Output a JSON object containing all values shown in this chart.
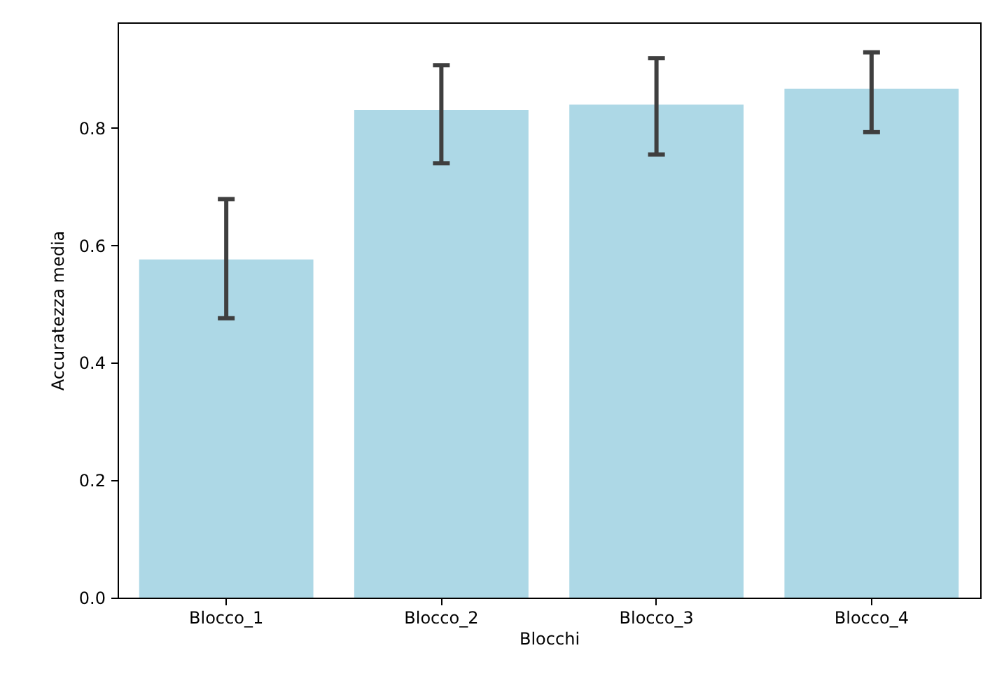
{
  "chart_data": {
    "type": "bar",
    "xlabel": "Blocchi",
    "ylabel": "Accuratezza media",
    "categories": [
      "Blocco_1",
      "Blocco_2",
      "Blocco_3",
      "Blocco_4"
    ],
    "values": [
      0.576,
      0.831,
      0.84,
      0.867
    ],
    "errors": [
      [
        0.476,
        0.679
      ],
      [
        0.74,
        0.907
      ],
      [
        0.755,
        0.919
      ],
      [
        0.793,
        0.929
      ]
    ],
    "color": "#add8e6",
    "ylim": [
      0,
      0.98
    ],
    "yticks": [
      {
        "value": 0,
        "label": "0.0"
      },
      {
        "value": 0.2,
        "label": "0.2"
      },
      {
        "value": 0.4,
        "label": "0.4"
      },
      {
        "value": 0.6,
        "label": "0.6"
      },
      {
        "value": 0.8,
        "label": "0.8"
      }
    ],
    "grid": false
  }
}
